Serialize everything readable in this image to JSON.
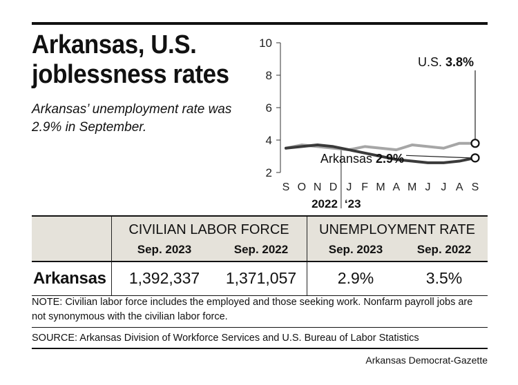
{
  "header": {
    "title": "Arkansas, U.S.\njoblessness rates",
    "subtitle": "Arkansas’ unemployment rate was 2.9% in September."
  },
  "chart_data": {
    "type": "line",
    "x": [
      "S",
      "O",
      "N",
      "D",
      "J",
      "F",
      "M",
      "A",
      "M",
      "J",
      "J",
      "A",
      "S"
    ],
    "year_labels": [
      "2022",
      "‘23"
    ],
    "ylim": [
      2,
      10
    ],
    "yticks": [
      2,
      4,
      6,
      8,
      10
    ],
    "series": [
      {
        "name": "U.S.",
        "value_label": "3.8%",
        "color": "#a6a6a6",
        "values": [
          3.5,
          3.7,
          3.6,
          3.5,
          3.4,
          3.6,
          3.5,
          3.4,
          3.7,
          3.6,
          3.5,
          3.8,
          3.8
        ]
      },
      {
        "name": "Arkansas",
        "value_label": "2.9%",
        "color": "#3a3a3a",
        "values": [
          3.5,
          3.6,
          3.7,
          3.6,
          3.4,
          3.2,
          3.0,
          2.8,
          2.7,
          2.6,
          2.6,
          2.7,
          2.9
        ]
      }
    ]
  },
  "table": {
    "groups": [
      "CIVILIAN LABOR FORCE",
      "UNEMPLOYMENT RATE"
    ],
    "subheaders": [
      "Sep. 2023",
      "Sep. 2022",
      "Sep. 2023",
      "Sep. 2022"
    ],
    "rows": [
      {
        "label": "Arkansas",
        "cells": [
          "1,392,337",
          "1,371,057",
          "2.9%",
          "3.5%"
        ]
      }
    ]
  },
  "note": "NOTE: Civilian labor force includes the employed and those seeking work. Nonfarm payroll jobs are not synonymous with the civilian labor force.",
  "source": "SOURCE: Arkansas Division of Workforce Services and U.S. Bureau of Labor Statistics",
  "credit": "Arkansas Democrat-Gazette"
}
